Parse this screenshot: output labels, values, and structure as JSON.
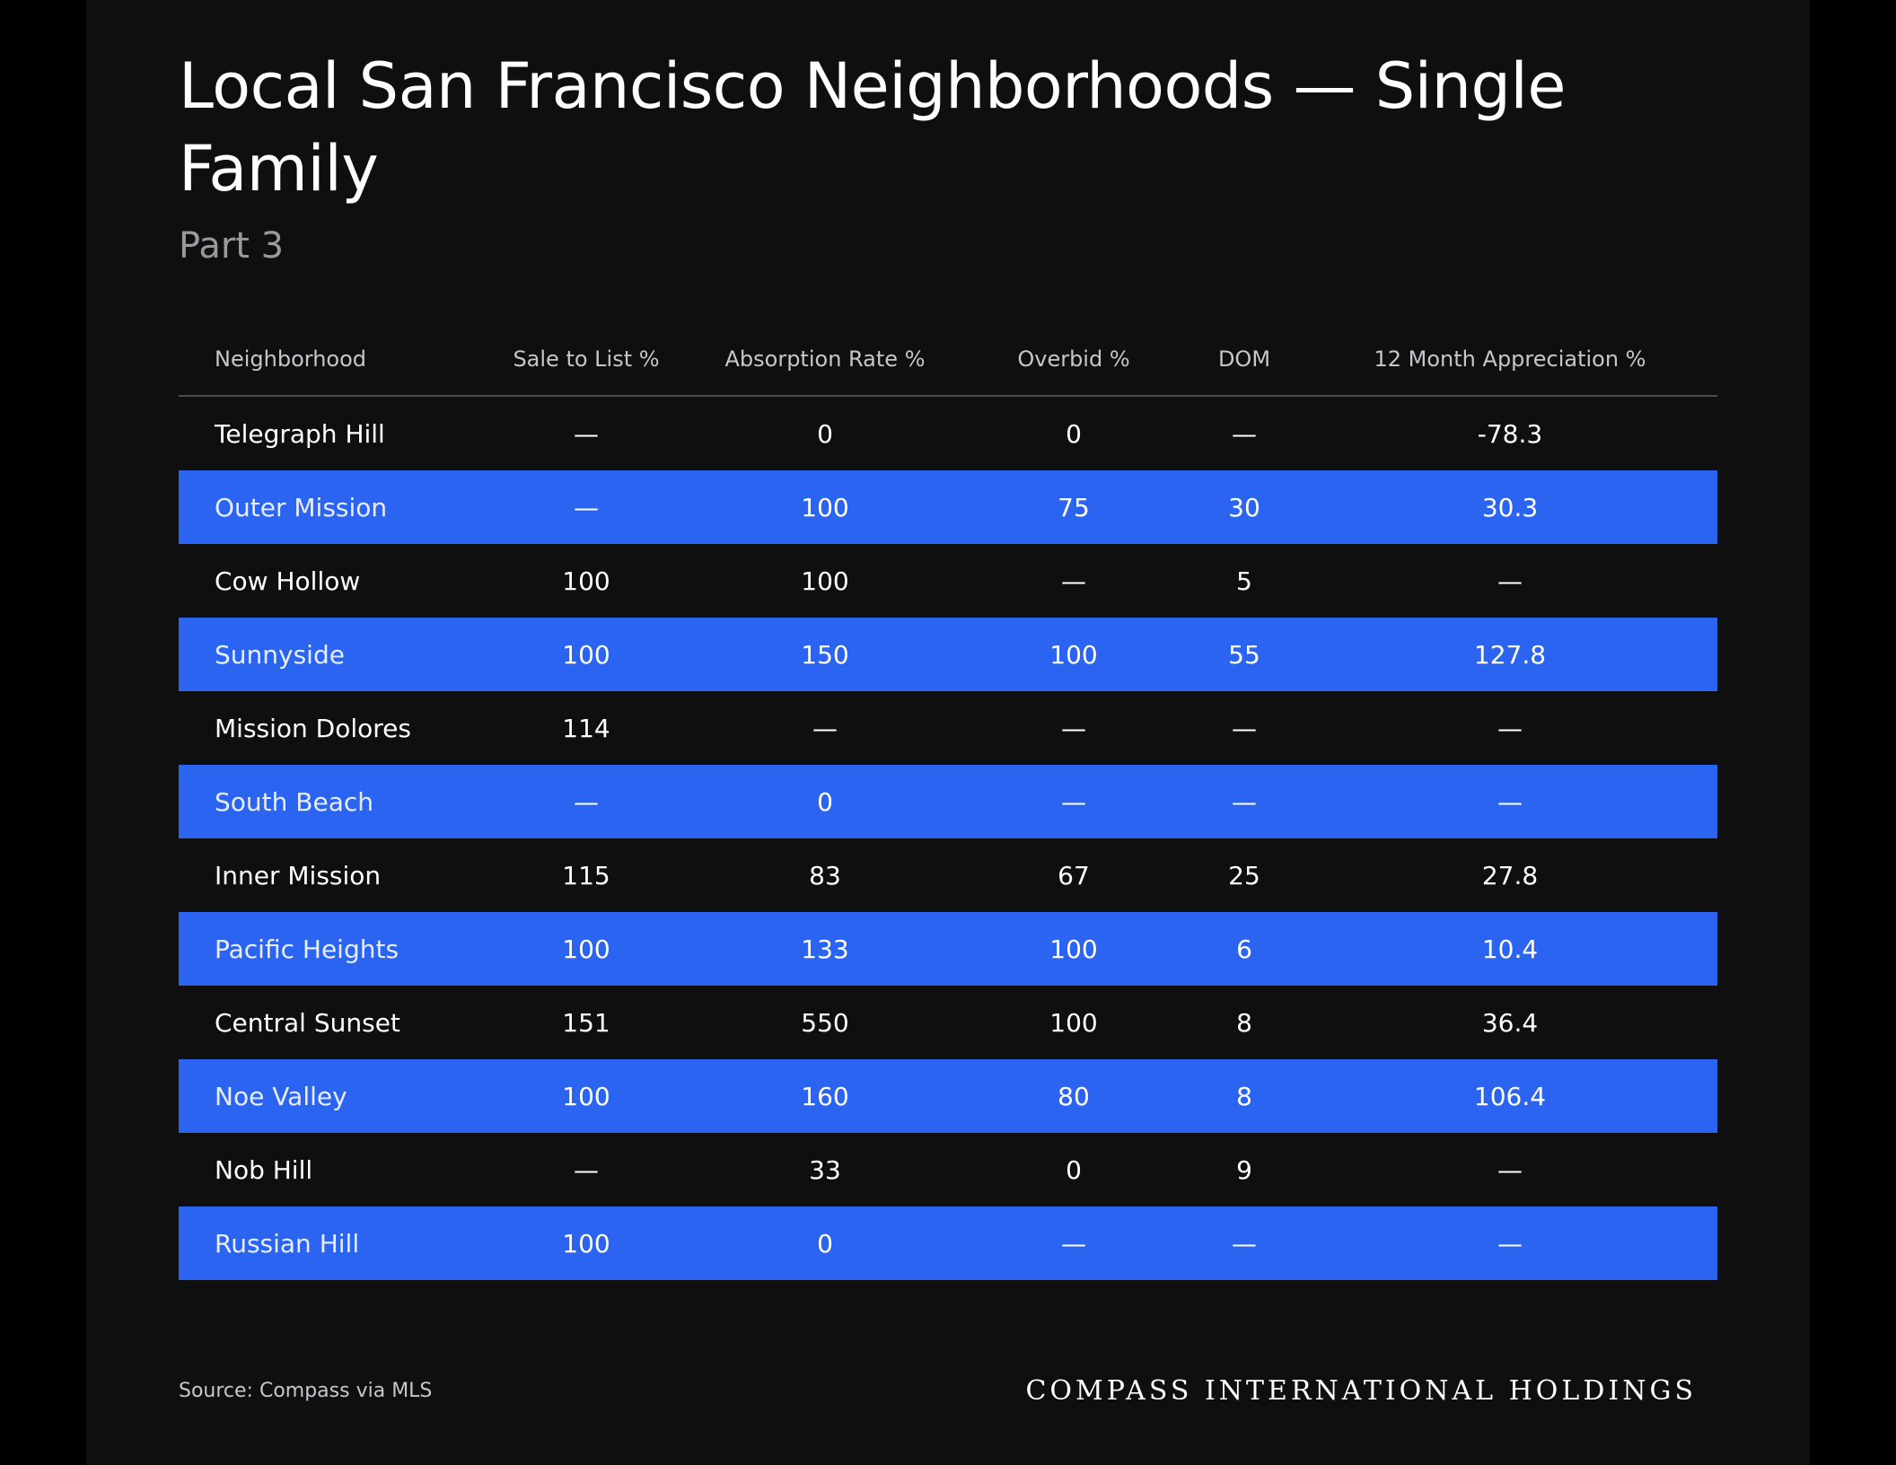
{
  "title": "Local San Francisco Neighborhoods — Single Family",
  "subtitle": "Part 3",
  "table": {
    "headers": [
      "Neighborhood",
      "Sale to List %",
      "Absorption Rate %",
      "Overbid %",
      "DOM",
      "12 Month Appreciation %"
    ],
    "rows": [
      [
        "Telegraph Hill",
        "—",
        "0",
        "0",
        "—",
        "-78.3"
      ],
      [
        "Outer Mission",
        "—",
        "100",
        "75",
        "30",
        "30.3"
      ],
      [
        "Cow Hollow",
        "100",
        "100",
        "—",
        "5",
        "—"
      ],
      [
        "Sunnyside",
        "100",
        "150",
        "100",
        "55",
        "127.8"
      ],
      [
        "Mission Dolores",
        "114",
        "—",
        "—",
        "—",
        "—"
      ],
      [
        "South Beach",
        "—",
        "0",
        "—",
        "—",
        "—"
      ],
      [
        "Inner Mission",
        "115",
        "83",
        "67",
        "25",
        "27.8"
      ],
      [
        "Pacific Heights",
        "100",
        "133",
        "100",
        "6",
        "10.4"
      ],
      [
        "Central Sunset",
        "151",
        "550",
        "100",
        "8",
        "36.4"
      ],
      [
        "Noe Valley",
        "100",
        "160",
        "80",
        "8",
        "106.4"
      ],
      [
        "Nob Hill",
        "—",
        "33",
        "0",
        "9",
        "—"
      ],
      [
        "Russian Hill",
        "100",
        "0",
        "—",
        "—",
        "—"
      ]
    ]
  },
  "footer": {
    "source": "Source: Compass via MLS",
    "brand": "COMPASS INTERNATIONAL HOLDINGS"
  },
  "colors": {
    "background": "#0f0f10",
    "accent_row": "#2c64f2"
  }
}
